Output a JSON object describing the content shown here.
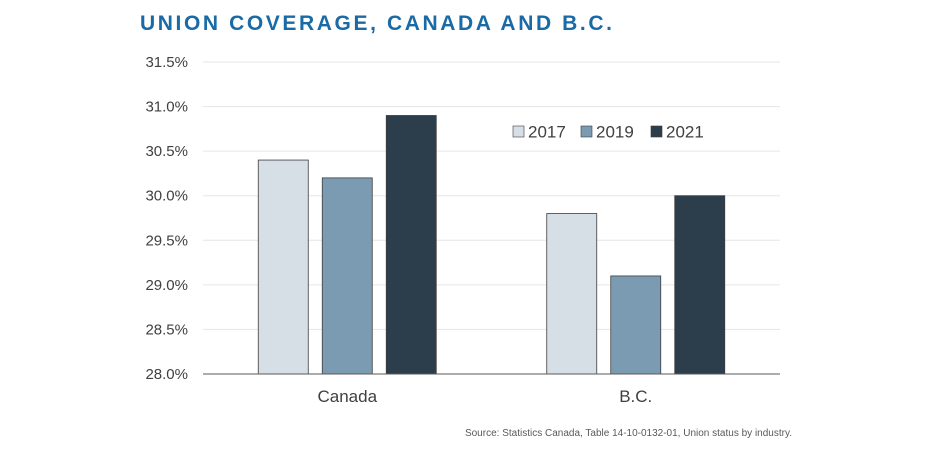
{
  "colors": {
    "title": "#1a6aa6",
    "grid": "#e6e6e6",
    "axis": "#595959",
    "bar_stroke": "#3c3c3c"
  },
  "source": "Source: Statistics Canada, Table 14-10-0132-01, Union status by industry.",
  "chart_data": {
    "type": "bar",
    "title": "UNION COVERAGE, CANADA AND B.C.",
    "xlabel": "",
    "ylabel": "",
    "categories": [
      "Canada",
      "B.C."
    ],
    "series": [
      {
        "name": "2017",
        "values": [
          30.4,
          29.8
        ],
        "color": "#d6dfe6"
      },
      {
        "name": "2019",
        "values": [
          30.2,
          29.1
        ],
        "color": "#7b9bb3"
      },
      {
        "name": "2021",
        "values": [
          30.9,
          30.0
        ],
        "color": "#2c3e4c"
      }
    ],
    "ylim": [
      28.0,
      31.5
    ],
    "yticks": [
      28.0,
      28.5,
      29.0,
      29.5,
      30.0,
      30.5,
      31.0,
      31.5
    ],
    "ytick_labels": [
      "28.0%",
      "28.5%",
      "29.0%",
      "29.5%",
      "30.0%",
      "30.5%",
      "31.0%",
      "31.5%"
    ],
    "grid": true,
    "legend_position": "top-right"
  }
}
